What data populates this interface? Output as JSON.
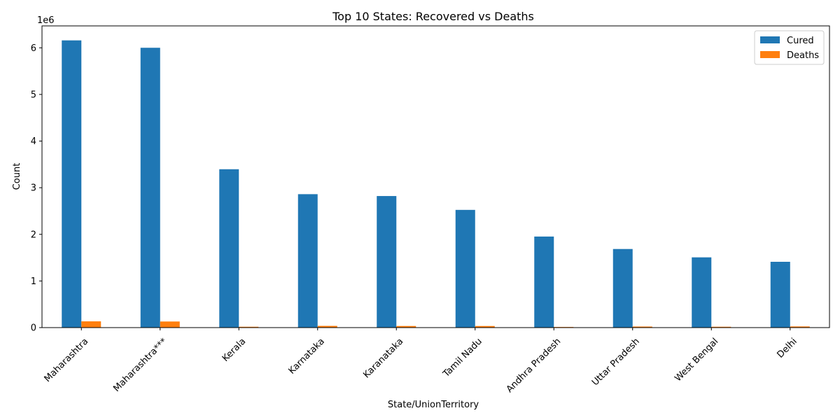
{
  "chart_data": {
    "type": "bar",
    "title": "Top 10 States: Recovered vs Deaths",
    "xlabel": "State/UnionTerritory",
    "ylabel": "Count",
    "y_multiplier_label": "1e6",
    "y_scale": 1000000,
    "ylim": [
      0,
      6470000
    ],
    "yticks": [
      0,
      1,
      2,
      3,
      4,
      5,
      6
    ],
    "grid": false,
    "legend_position": "top-right",
    "categories": [
      "Maharashtra",
      "Maharashtra***",
      "Kerala",
      "Karnataka",
      "Karanataka",
      "Tamil Nadu",
      "Andhra Pradesh",
      "Uttar Pradesh",
      "West Bengal",
      "Delhi"
    ],
    "series": [
      {
        "name": "Cured",
        "color": "#1f77b4",
        "values": [
          6159676,
          6000911,
          3396184,
          2861499,
          2821491,
          2524400,
          1952736,
          1685492,
          1506532,
          1411280
        ]
      },
      {
        "name": "Deaths",
        "color": "#ff7f0e",
        "values": [
          134201,
          130753,
          18004,
          36848,
          34654,
          34367,
          13564,
          22775,
          18252,
          25068
        ]
      }
    ]
  }
}
